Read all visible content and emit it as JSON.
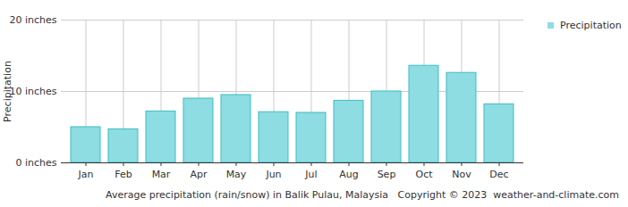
{
  "chart_data": {
    "type": "bar",
    "categories": [
      "Jan",
      "Feb",
      "Mar",
      "Apr",
      "May",
      "Jun",
      "Jul",
      "Aug",
      "Sep",
      "Oct",
      "Nov",
      "Dec"
    ],
    "series": [
      {
        "name": "Precipitation",
        "color": "#8ddde2",
        "values": [
          5.0,
          4.7,
          7.2,
          9.0,
          9.5,
          7.1,
          7.0,
          8.7,
          10.0,
          13.6,
          12.6,
          8.2
        ]
      }
    ],
    "y_label": "Precipitation",
    "ylim": [
      0,
      20
    ],
    "yticks": [
      {
        "value": 0,
        "label": "0 inches"
      },
      {
        "value": 10,
        "label": "10 inches"
      },
      {
        "value": 20,
        "label": "20 inches"
      }
    ],
    "grid": true,
    "legend": "top-right",
    "caption": "Average precipitation (rain/snow) in Balik Pulau, Malaysia   Copyright © 2023  weather-and-climate.com"
  }
}
